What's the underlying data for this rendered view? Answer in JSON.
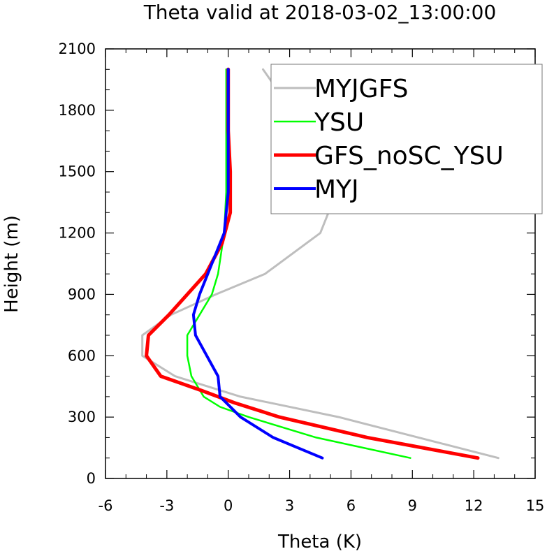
{
  "chart_data": {
    "type": "line",
    "title": "Theta valid at 2018-03-02_13:00:00",
    "xlabel": "Theta (K)",
    "ylabel": "Height (m)",
    "xlim": [
      -6,
      15
    ],
    "ylim": [
      0,
      2100
    ],
    "xticks": [
      "-6",
      "-3",
      "0",
      "3",
      "6",
      "9",
      "12",
      "15"
    ],
    "yticks": [
      "0",
      "300",
      "600",
      "900",
      "1200",
      "1500",
      "1800",
      "2100"
    ],
    "grid": false,
    "legend_position": "top-right",
    "series": [
      {
        "name": "MYJGFS",
        "color": "#bebebe",
        "width": 3,
        "points": [
          [
            13.2,
            100
          ],
          [
            5.4,
            300
          ],
          [
            0.6,
            400
          ],
          [
            -2.6,
            500
          ],
          [
            -4.2,
            600
          ],
          [
            -4.2,
            700
          ],
          [
            -2.8,
            800
          ],
          [
            -0.6,
            900
          ],
          [
            1.8,
            1000
          ],
          [
            4.5,
            1200
          ],
          [
            4.9,
            1300
          ],
          [
            4.6,
            1500
          ],
          [
            3.7,
            1700
          ],
          [
            2.4,
            1900
          ],
          [
            1.7,
            2000
          ]
        ]
      },
      {
        "name": "YSU",
        "color": "#00ff00",
        "width": 2.5,
        "points": [
          [
            8.9,
            100
          ],
          [
            4.3,
            200
          ],
          [
            1.0,
            300
          ],
          [
            -0.4,
            350
          ],
          [
            -1.2,
            400
          ],
          [
            -1.8,
            500
          ],
          [
            -2.0,
            600
          ],
          [
            -2.0,
            700
          ],
          [
            -1.4,
            800
          ],
          [
            -0.8,
            900
          ],
          [
            -0.5,
            1000
          ],
          [
            -0.2,
            1200
          ],
          [
            -0.1,
            1400
          ],
          [
            -0.1,
            1600
          ],
          [
            -0.1,
            1800
          ],
          [
            -0.1,
            2000
          ]
        ]
      },
      {
        "name": "GFS_noSC_YSU",
        "color": "#ff0000",
        "width": 5,
        "points": [
          [
            12.2,
            100
          ],
          [
            6.8,
            200
          ],
          [
            2.5,
            300
          ],
          [
            0.3,
            370
          ],
          [
            -1.3,
            430
          ],
          [
            -3.3,
            500
          ],
          [
            -4.0,
            600
          ],
          [
            -3.9,
            700
          ],
          [
            -2.9,
            800
          ],
          [
            -2.0,
            900
          ],
          [
            -1.1,
            1000
          ],
          [
            -0.3,
            1150
          ],
          [
            0.1,
            1300
          ],
          [
            0.1,
            1500
          ],
          [
            0.0,
            1700
          ],
          [
            0.0,
            2000
          ]
        ]
      },
      {
        "name": "MYJ",
        "color": "#0000ff",
        "width": 4,
        "points": [
          [
            4.6,
            100
          ],
          [
            2.2,
            200
          ],
          [
            0.6,
            300
          ],
          [
            -0.2,
            380
          ],
          [
            -0.4,
            400
          ],
          [
            -0.5,
            500
          ],
          [
            -1.6,
            700
          ],
          [
            -1.7,
            800
          ],
          [
            -1.4,
            900
          ],
          [
            -1.0,
            1000
          ],
          [
            -0.2,
            1200
          ],
          [
            0.0,
            1400
          ],
          [
            0.0,
            1600
          ],
          [
            0.0,
            1800
          ],
          [
            0.0,
            2000
          ]
        ]
      }
    ]
  }
}
